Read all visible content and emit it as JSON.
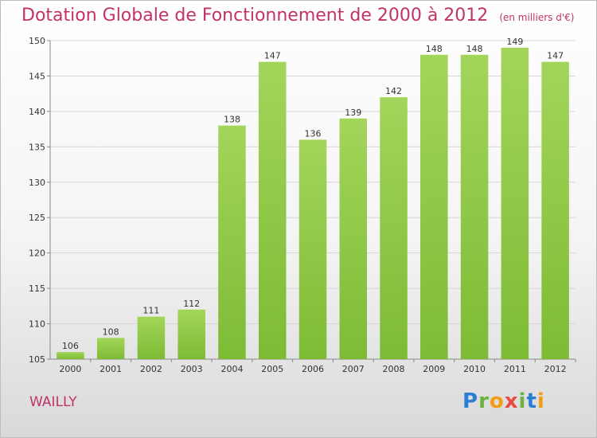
{
  "title": "Dotation Globale de Fonctionnement de 2000 à 2012",
  "subtitle": "(en milliers d'€)",
  "location": "WAILLY",
  "logo": {
    "letters": [
      {
        "char": "P",
        "color": "#2a7fd4"
      },
      {
        "char": "r",
        "color": "#6cb33e"
      },
      {
        "char": "o",
        "color": "#f39c12"
      },
      {
        "char": "x",
        "color": "#e74c3c"
      },
      {
        "char": "i",
        "color": "#6cb33e"
      },
      {
        "char": "t",
        "color": "#2a7fd4"
      },
      {
        "char": "i",
        "color": "#f39c12"
      }
    ]
  },
  "chart_data": {
    "type": "bar",
    "title": "Dotation Globale de Fonctionnement de 2000 à 2012",
    "subtitle": "(en milliers d'€)",
    "categories": [
      "2000",
      "2001",
      "2002",
      "2003",
      "2004",
      "2005",
      "2006",
      "2007",
      "2008",
      "2009",
      "2010",
      "2011",
      "2012"
    ],
    "values": [
      106,
      108,
      111,
      112,
      138,
      147,
      136,
      139,
      142,
      148,
      148,
      149,
      147
    ],
    "ylim": [
      105,
      150
    ],
    "yticks": [
      105,
      110,
      115,
      120,
      125,
      130,
      135,
      140,
      145,
      150
    ],
    "grid": true,
    "bar_color": "#7dbb35",
    "bar_color_light": "#a3d55a",
    "title_color": "#c0336a"
  }
}
